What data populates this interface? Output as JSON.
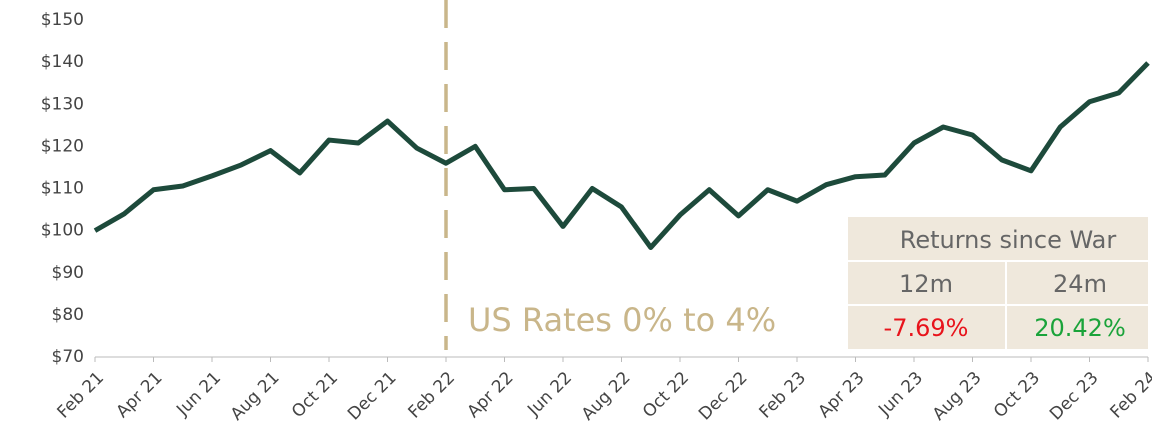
{
  "chart_data": {
    "type": "line",
    "categories": [
      "Feb 21",
      null,
      "Apr 21",
      null,
      "Jun 21",
      null,
      "Aug 21",
      null,
      "Oct 21",
      null,
      "Dec 21",
      null,
      "Feb 22",
      null,
      "Apr 22",
      null,
      "Jun 22",
      null,
      "Aug 22",
      null,
      "Oct 22",
      null,
      "Dec 22",
      null,
      "Feb 23",
      null,
      "Apr 23",
      null,
      "Jun 23",
      null,
      "Aug 23",
      null,
      "Oct 23",
      null,
      "Dec 23",
      null,
      "Feb 24"
    ],
    "series": [
      {
        "color": "#1d4a3b",
        "values": [
          100,
          104,
          109.7,
          110.6,
          113,
          115.6,
          119,
          113.7,
          121.5,
          120.8,
          126,
          119.6,
          116,
          120,
          109.7,
          110,
          101,
          110,
          105.6,
          96,
          103.7,
          109.7,
          103.5,
          109.7,
          107,
          110.9,
          112.8,
          113.2,
          120.8,
          124.6,
          122.7,
          116.8,
          114.2,
          124.6,
          130.6,
          132.7,
          139.8
        ]
      }
    ],
    "ylim": [
      70,
      150
    ],
    "yticks": [
      {
        "value": 70,
        "label": "$70"
      },
      {
        "value": 80,
        "label": "$80"
      },
      {
        "value": 90,
        "label": "$90"
      },
      {
        "value": 100,
        "label": "$100"
      },
      {
        "value": 110,
        "label": "$110"
      },
      {
        "value": 120,
        "label": "$120"
      },
      {
        "value": 130,
        "label": "$130"
      },
      {
        "value": 140,
        "label": "$140"
      },
      {
        "value": 150,
        "label": "$150"
      }
    ],
    "annotation": {
      "text": "US Rates 0% to 4%",
      "at": "Feb 22",
      "color": "#c9b68a"
    },
    "grid": false
  },
  "table": {
    "title": "Returns since War",
    "headers": [
      "12m",
      "24m"
    ],
    "values": [
      "-7.69%",
      "20.42%"
    ],
    "colors": [
      "#e8141c",
      "#1aa33a"
    ]
  }
}
